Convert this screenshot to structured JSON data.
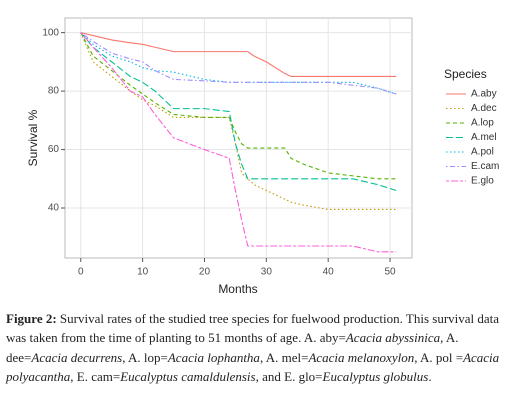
{
  "chart_data": {
    "type": "line",
    "x_label": "Months",
    "y_label": "Survival %",
    "legend_title": "Species",
    "x": [
      0,
      2,
      5,
      8,
      10,
      12,
      15,
      20,
      24,
      25,
      26,
      27,
      28,
      30,
      33,
      34,
      36,
      40,
      44,
      48,
      51
    ],
    "series": [
      {
        "name": "A.aby",
        "color": "#F8766D",
        "dash": "solid",
        "values": [
          100,
          99,
          97.5,
          96.5,
          96,
          95,
          93.5,
          93.5,
          93.5,
          93.5,
          93.5,
          93.5,
          92,
          90,
          86,
          85,
          85,
          85,
          85,
          85,
          85
        ]
      },
      {
        "name": "A.dec",
        "color": "#C49A00",
        "dash": "dotted",
        "values": [
          100,
          90,
          85,
          80,
          77,
          75,
          71,
          71,
          71,
          62,
          52,
          50,
          48,
          46,
          43,
          42,
          41,
          39.5,
          39.5,
          39.5,
          39.5
        ]
      },
      {
        "name": "A.lop",
        "color": "#53B400",
        "dash": "dashed",
        "values": [
          100,
          92,
          87,
          82,
          79,
          76,
          72,
          71,
          71,
          66,
          62,
          60.5,
          60.5,
          60.5,
          60.5,
          57,
          55,
          52,
          51,
          50,
          50
        ]
      },
      {
        "name": "A.mel",
        "color": "#00C094",
        "dash": "longdash",
        "values": [
          100,
          95,
          90,
          85,
          83,
          80,
          74,
          74,
          73,
          62,
          55,
          50,
          50,
          50,
          50,
          50,
          50,
          50,
          50,
          48,
          46
        ]
      },
      {
        "name": "A.pol",
        "color": "#00B6EB",
        "dash": "dotted",
        "values": [
          100,
          96,
          92,
          90,
          88,
          87,
          86.5,
          84,
          83,
          83,
          83,
          83,
          83,
          83,
          83,
          83,
          83,
          83,
          83,
          81,
          79
        ]
      },
      {
        "name": "E.cam",
        "color": "#A58AFF",
        "dash": "dotdash",
        "values": [
          100,
          97,
          93,
          91,
          90,
          87,
          84,
          83.5,
          83,
          83,
          83,
          83,
          83,
          83,
          83,
          83,
          83,
          83,
          82,
          81,
          79
        ]
      },
      {
        "name": "E.glo",
        "color": "#FB61D7",
        "dash": "twodash",
        "values": [
          100,
          95,
          88,
          80,
          78,
          72,
          64,
          60,
          57,
          46,
          36,
          27,
          27,
          27,
          27,
          27,
          27,
          27,
          27,
          25,
          25
        ]
      }
    ],
    "xlim": [
      -2.55,
      53.55
    ],
    "xticks": [
      0,
      10,
      20,
      30,
      40,
      50
    ],
    "ylim": [
      22.9,
      105
    ],
    "yticks": [
      40,
      60,
      80,
      100
    ],
    "grid": true,
    "legend": "right"
  },
  "caption": {
    "segments": [
      {
        "text": "Figure 2:",
        "style": "bold"
      },
      {
        "text": " Survival rates of the studied tree species for fuelwood production. This survival data was taken from the time of planting to 51 months of age. A. aby=",
        "style": "normal"
      },
      {
        "text": "Acacia abyssinica",
        "style": "italic"
      },
      {
        "text": ", A. dee=",
        "style": "normal"
      },
      {
        "text": "Acacia decurrens",
        "style": "italic"
      },
      {
        "text": ", A. lop=",
        "style": "normal"
      },
      {
        "text": "Acacia lophantha",
        "style": "italic"
      },
      {
        "text": ", A. mel=",
        "style": "normal"
      },
      {
        "text": "Acacia melanoxylon",
        "style": "italic"
      },
      {
        "text": ", A. pol =",
        "style": "normal"
      },
      {
        "text": "Acacia polyacantha",
        "style": "italic"
      },
      {
        "text": ", E. cam=",
        "style": "normal"
      },
      {
        "text": "Eucalyptus camaldulensis",
        "style": "italic"
      },
      {
        "text": ", and E. glo=",
        "style": "normal"
      },
      {
        "text": "Eucalyptus globulus",
        "style": "italic"
      },
      {
        "text": ".",
        "style": "normal"
      }
    ]
  }
}
